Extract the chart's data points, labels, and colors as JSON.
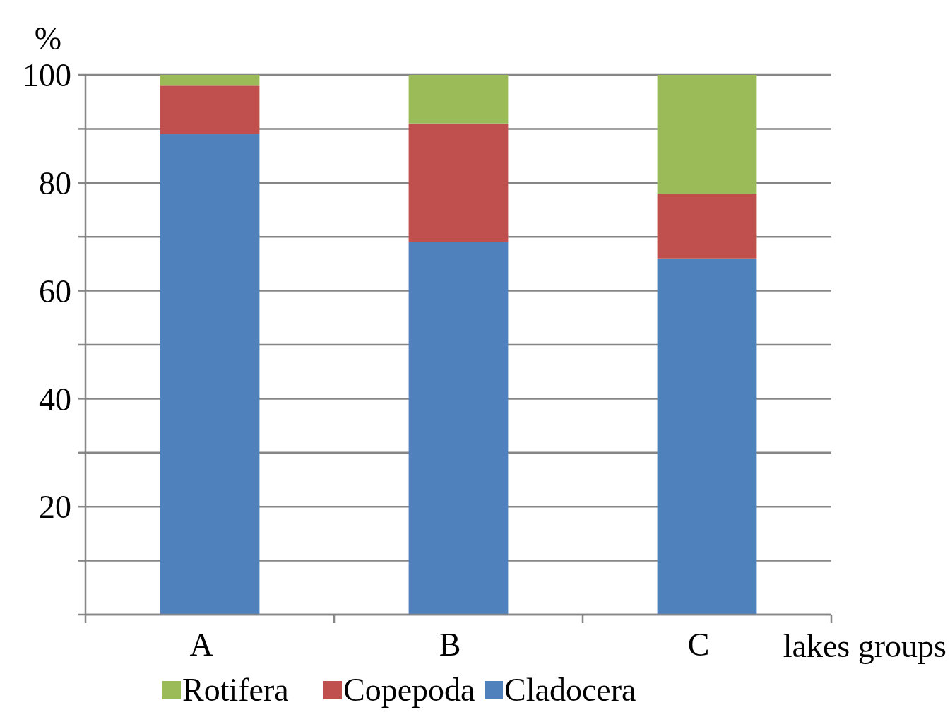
{
  "chart_data": {
    "type": "bar",
    "stacked": true,
    "ylabel": "%",
    "xlabel": "lakes groups",
    "categories": [
      "A",
      "B",
      "C"
    ],
    "series": [
      {
        "name": "Cladocera",
        "color": "#4f81bd",
        "values": [
          89,
          69,
          66
        ]
      },
      {
        "name": "Copepoda",
        "color": "#c0504d",
        "values": [
          9,
          22,
          12
        ]
      },
      {
        "name": "Rotifera",
        "color": "#9bbb59",
        "values": [
          2,
          9,
          22
        ]
      }
    ],
    "ylim": [
      0,
      100
    ],
    "yticks": [
      {
        "value": 0,
        "label": null
      },
      {
        "value": 10,
        "label": null
      },
      20,
      {
        "value": 30,
        "label": null
      },
      40,
      {
        "value": 50,
        "label": null
      },
      60,
      {
        "value": 70,
        "label": null
      },
      80,
      {
        "value": 90,
        "label": null
      },
      100
    ],
    "grid": "y",
    "legend": "bottom"
  }
}
